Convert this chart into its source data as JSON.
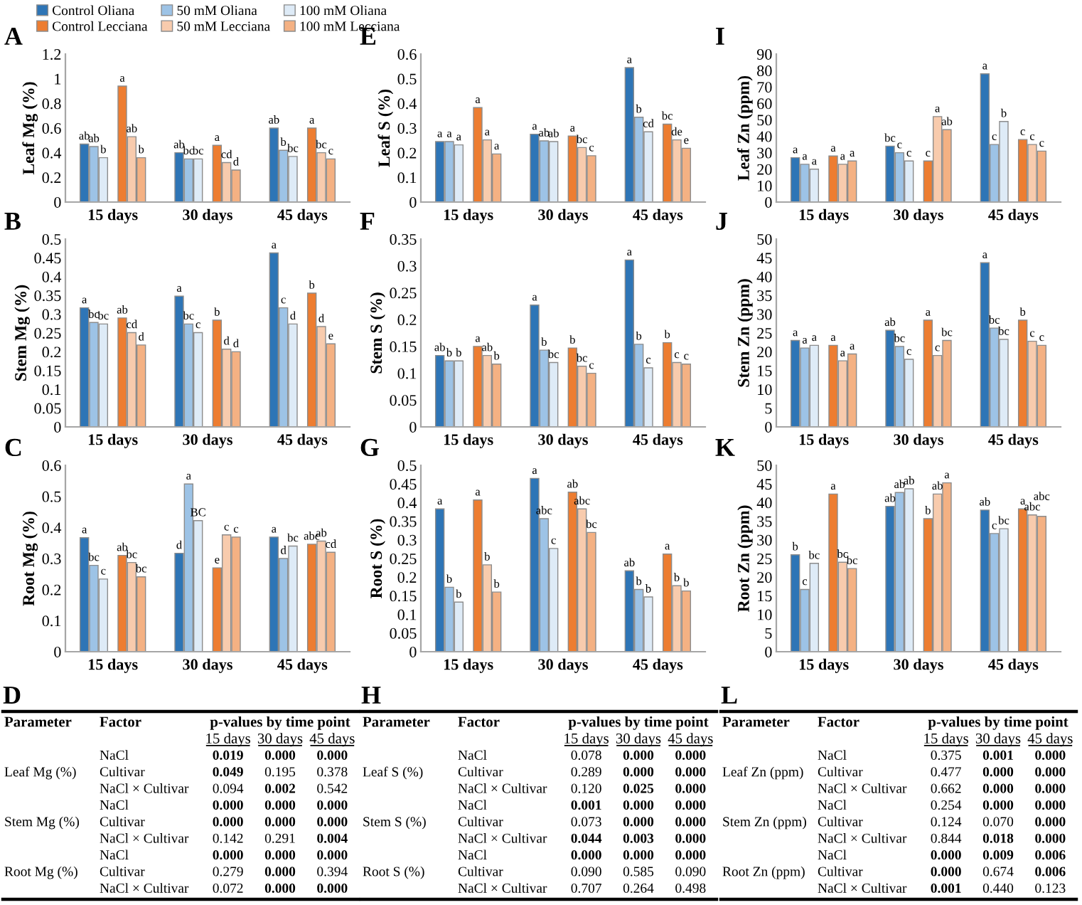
{
  "chart_data": [
    {
      "type": "bar",
      "title": "A",
      "ylabel": "Leaf Mg (%)",
      "categories": [
        "15 days",
        "30 days",
        "45 days"
      ],
      "legend": "top",
      "ylim": [
        0,
        1.2
      ],
      "yticks": [
        0,
        0.2,
        0.4,
        0.6,
        0.8,
        1,
        1.2
      ],
      "series": [
        {
          "name": "Control Oliana",
          "color": "#2e75b6",
          "values": [
            0.47,
            0.4,
            0.6
          ],
          "value_labels": [
            "ab",
            "ab",
            "ab"
          ]
        },
        {
          "name": "50 mM Oliana",
          "color": "#9dc3e6",
          "values": [
            0.45,
            0.35,
            0.42
          ],
          "value_labels": [
            "ab",
            "bc",
            "b"
          ]
        },
        {
          "name": "100 mM Oliana",
          "color": "#deebf7",
          "values": [
            0.36,
            0.35,
            0.37
          ],
          "value_labels": [
            "b",
            "bc",
            "bc"
          ]
        },
        {
          "name": "Control Lecciana",
          "color": "#ed7d31",
          "values": [
            0.94,
            0.46,
            0.6
          ],
          "value_labels": [
            "a",
            "a",
            "a"
          ]
        },
        {
          "name": "50 mM Lecciana",
          "color": "#f8cbad",
          "values": [
            0.53,
            0.32,
            0.4
          ],
          "value_labels": [
            "ab",
            "cd",
            "bc"
          ]
        },
        {
          "name": "100 mM Lecciana",
          "color": "#f4b183",
          "values": [
            0.36,
            0.26,
            0.35
          ],
          "value_labels": [
            "b",
            "d",
            "c"
          ]
        }
      ]
    },
    {
      "type": "bar",
      "title": "E",
      "ylabel": "Leaf S (%)",
      "categories": [
        "15 days",
        "30 days",
        "45 days"
      ],
      "ylim": [
        0,
        0.6
      ],
      "yticks": [
        0,
        0.1,
        0.2,
        0.3,
        0.4,
        0.5,
        0.6
      ],
      "series": [
        {
          "color": "#2e75b6",
          "values": [
            0.245,
            0.275,
            0.545
          ],
          "value_labels": [
            "a",
            "a",
            "a"
          ]
        },
        {
          "color": "#9dc3e6",
          "values": [
            0.245,
            0.248,
            0.344
          ],
          "value_labels": [
            "a",
            "ab",
            "b"
          ]
        },
        {
          "color": "#deebf7",
          "values": [
            0.232,
            0.245,
            0.285
          ],
          "value_labels": [
            "a",
            "ab",
            "cd"
          ]
        },
        {
          "color": "#ed7d31",
          "values": [
            0.383,
            0.268,
            0.316
          ],
          "value_labels": [
            "a",
            "a",
            "bc"
          ]
        },
        {
          "color": "#f8cbad",
          "values": [
            0.252,
            0.221,
            0.252
          ],
          "value_labels": [
            "a",
            "bc",
            "de"
          ]
        },
        {
          "color": "#f4b183",
          "values": [
            0.195,
            0.188,
            0.218
          ],
          "value_labels": [
            "a",
            "c",
            "e"
          ]
        }
      ]
    },
    {
      "type": "bar",
      "title": "I",
      "ylabel": "Leaf Zn (ppm)",
      "categories": [
        "15 days",
        "30 days",
        "45 days"
      ],
      "ylim": [
        0,
        90
      ],
      "yticks": [
        0,
        10,
        20,
        30,
        40,
        50,
        60,
        70,
        80,
        90
      ],
      "series": [
        {
          "color": "#2e75b6",
          "values": [
            27,
            34,
            78
          ],
          "value_labels": [
            "a",
            "bc",
            "a"
          ]
        },
        {
          "color": "#9dc3e6",
          "values": [
            23,
            30,
            35
          ],
          "value_labels": [
            "a",
            "c",
            "c"
          ]
        },
        {
          "color": "#deebf7",
          "values": [
            20,
            25,
            49
          ],
          "value_labels": [
            "a",
            "c",
            "b"
          ]
        },
        {
          "color": "#ed7d31",
          "values": [
            28,
            25,
            38
          ],
          "value_labels": [
            "a",
            "c",
            "c"
          ]
        },
        {
          "color": "#f8cbad",
          "values": [
            23,
            52,
            35
          ],
          "value_labels": [
            "a",
            "a",
            "c"
          ]
        },
        {
          "color": "#f4b183",
          "values": [
            25,
            44,
            31
          ],
          "value_labels": [
            "a",
            "ab",
            "c"
          ]
        }
      ]
    },
    {
      "type": "bar",
      "title": "B",
      "ylabel": "Stem Mg (%)",
      "categories": [
        "15 days",
        "30 days",
        "45 days"
      ],
      "ylim": [
        0,
        0.5
      ],
      "yticks": [
        0,
        0.05,
        0.1,
        0.15,
        0.2,
        0.25,
        0.3,
        0.35,
        0.4,
        0.45,
        0.5
      ],
      "series": [
        {
          "color": "#2e75b6",
          "values": [
            0.317,
            0.348,
            0.463
          ],
          "value_labels": [
            "a",
            "a",
            "a"
          ]
        },
        {
          "color": "#9dc3e6",
          "values": [
            0.278,
            0.274,
            0.317
          ],
          "value_labels": [
            "bc",
            "bc",
            "c"
          ]
        },
        {
          "color": "#deebf7",
          "values": [
            0.274,
            0.251,
            0.274
          ],
          "value_labels": [
            "bc",
            "c",
            "d"
          ]
        },
        {
          "color": "#ed7d31",
          "values": [
            0.29,
            0.284,
            0.356
          ],
          "value_labels": [
            "ab",
            "b",
            "b"
          ]
        },
        {
          "color": "#f8cbad",
          "values": [
            0.251,
            0.207,
            0.267
          ],
          "value_labels": [
            "cd",
            "d",
            "d"
          ]
        },
        {
          "color": "#f4b183",
          "values": [
            0.218,
            0.2,
            0.221
          ],
          "value_labels": [
            "d",
            "d",
            "e"
          ]
        }
      ]
    },
    {
      "type": "bar",
      "title": "F",
      "ylabel": "Stem S (%)",
      "categories": [
        "15 days",
        "30 days",
        "45 days"
      ],
      "ylim": [
        0,
        0.35
      ],
      "yticks": [
        0,
        0.05,
        0.1,
        0.15,
        0.2,
        0.25,
        0.3,
        0.35
      ],
      "series": [
        {
          "color": "#2e75b6",
          "values": [
            0.133,
            0.227,
            0.311
          ],
          "value_labels": [
            "ab",
            "a",
            "a"
          ]
        },
        {
          "color": "#9dc3e6",
          "values": [
            0.123,
            0.143,
            0.154
          ],
          "value_labels": [
            "b",
            "b",
            "b"
          ]
        },
        {
          "color": "#deebf7",
          "values": [
            0.123,
            0.12,
            0.11
          ],
          "value_labels": [
            "b",
            "bc",
            "c"
          ]
        },
        {
          "color": "#ed7d31",
          "values": [
            0.15,
            0.147,
            0.157
          ],
          "value_labels": [
            "a",
            "b",
            "b"
          ]
        },
        {
          "color": "#f8cbad",
          "values": [
            0.133,
            0.113,
            0.12
          ],
          "value_labels": [
            "ab",
            "bc",
            "c"
          ]
        },
        {
          "color": "#f4b183",
          "values": [
            0.117,
            0.1,
            0.117
          ],
          "value_labels": [
            "b",
            "c",
            "c"
          ]
        }
      ]
    },
    {
      "type": "bar",
      "title": "J",
      "ylabel": "Stem Zn (ppm)",
      "categories": [
        "15 days",
        "30 days",
        "45 days"
      ],
      "ylim": [
        0,
        50
      ],
      "yticks": [
        0,
        5,
        10,
        15,
        20,
        25,
        30,
        35,
        40,
        45,
        50
      ],
      "series": [
        {
          "color": "#2e75b6",
          "values": [
            23,
            25.7,
            43.7
          ],
          "value_labels": [
            "a",
            "ab",
            "a"
          ]
        },
        {
          "color": "#9dc3e6",
          "values": [
            21,
            21.4,
            26.3
          ],
          "value_labels": [
            "a",
            "bc",
            "bc"
          ]
        },
        {
          "color": "#deebf7",
          "values": [
            21.7,
            18,
            23.3
          ],
          "value_labels": [
            "a",
            "c",
            "bc"
          ]
        },
        {
          "color": "#ed7d31",
          "values": [
            21.7,
            28.4,
            28.4
          ],
          "value_labels": [
            "a",
            "a",
            "b"
          ]
        },
        {
          "color": "#f8cbad",
          "values": [
            17.6,
            19,
            22.8
          ],
          "value_labels": [
            "a",
            "c",
            "c"
          ]
        },
        {
          "color": "#f4b183",
          "values": [
            19.4,
            23,
            21.7
          ],
          "value_labels": [
            "a",
            "bc",
            "c"
          ]
        }
      ]
    },
    {
      "type": "bar",
      "title": "C",
      "ylabel": "Root Mg (%)",
      "categories": [
        "15 days",
        "30 days",
        "45 days"
      ],
      "ylim": [
        0,
        0.6
      ],
      "yticks": [
        0,
        0.1,
        0.2,
        0.3,
        0.4,
        0.5,
        0.6
      ],
      "series": [
        {
          "color": "#2e75b6",
          "values": [
            0.367,
            0.317,
            0.369
          ],
          "value_labels": [
            "a",
            "d",
            "a"
          ]
        },
        {
          "color": "#9dc3e6",
          "values": [
            0.278,
            0.54,
            0.3
          ],
          "value_labels": [
            "bc",
            "a",
            "d"
          ]
        },
        {
          "color": "#deebf7",
          "values": [
            0.234,
            0.422,
            0.34
          ],
          "value_labels": [
            "c",
            "BC",
            "bc"
          ]
        },
        {
          "color": "#ed7d31",
          "values": [
            0.31,
            0.27,
            0.346
          ],
          "value_labels": [
            "ab",
            "e",
            "abc"
          ]
        },
        {
          "color": "#f8cbad",
          "values": [
            0.287,
            0.376,
            0.356
          ],
          "value_labels": [
            "bc",
            "c",
            "ab"
          ]
        },
        {
          "color": "#f4b183",
          "values": [
            0.241,
            0.369,
            0.32
          ],
          "value_labels": [
            "bc",
            "c",
            "cd"
          ]
        }
      ]
    },
    {
      "type": "bar",
      "title": "G",
      "ylabel": "Root S (%)",
      "categories": [
        "15 days",
        "30 days",
        "45 days"
      ],
      "ylim": [
        0,
        0.5
      ],
      "yticks": [
        0,
        0.05,
        0.1,
        0.15,
        0.2,
        0.25,
        0.3,
        0.35,
        0.4,
        0.45,
        0.5
      ],
      "series": [
        {
          "color": "#2e75b6",
          "values": [
            0.383,
            0.465,
            0.217
          ],
          "value_labels": [
            "a",
            "a",
            "ab"
          ]
        },
        {
          "color": "#9dc3e6",
          "values": [
            0.173,
            0.357,
            0.167
          ],
          "value_labels": [
            "b",
            "abc",
            "b"
          ]
        },
        {
          "color": "#deebf7",
          "values": [
            0.133,
            0.277,
            0.147
          ],
          "value_labels": [
            "b",
            "c",
            "b"
          ]
        },
        {
          "color": "#ed7d31",
          "values": [
            0.407,
            0.428,
            0.262
          ],
          "value_labels": [
            "a",
            "ab",
            "a"
          ]
        },
        {
          "color": "#f8cbad",
          "values": [
            0.233,
            0.383,
            0.177
          ],
          "value_labels": [
            "b",
            "abc",
            "b"
          ]
        },
        {
          "color": "#f4b183",
          "values": [
            0.16,
            0.32,
            0.163
          ],
          "value_labels": [
            "b",
            "bc",
            "b"
          ]
        }
      ]
    },
    {
      "type": "bar",
      "title": "K",
      "ylabel": "Root Zn (ppm)",
      "categories": [
        "15 days",
        "30 days",
        "45 days"
      ],
      "ylim": [
        0,
        50
      ],
      "yticks": [
        0,
        5,
        10,
        15,
        20,
        25,
        30,
        35,
        40,
        45,
        50
      ],
      "series": [
        {
          "color": "#2e75b6",
          "values": [
            26,
            39,
            38
          ],
          "value_labels": [
            "b",
            "ab",
            "ab"
          ]
        },
        {
          "color": "#9dc3e6",
          "values": [
            16.7,
            42.7,
            31.7
          ],
          "value_labels": [
            "c",
            "ab",
            "c"
          ]
        },
        {
          "color": "#deebf7",
          "values": [
            23.7,
            43.7,
            33
          ],
          "value_labels": [
            "bc",
            "ab",
            "bc"
          ]
        },
        {
          "color": "#ed7d31",
          "values": [
            42.3,
            35.7,
            38.3
          ],
          "value_labels": [
            "a",
            "b",
            "a"
          ]
        },
        {
          "color": "#f8cbad",
          "values": [
            24,
            42.3,
            36.7
          ],
          "value_labels": [
            "bc",
            "ab",
            "abc"
          ]
        },
        {
          "color": "#f4b183",
          "values": [
            22.3,
            45.3,
            36.3
          ],
          "value_labels": [
            "bc",
            "a",
            "abc"
          ]
        }
      ]
    },
    {
      "type": "heatmap",
      "title": "D",
      "subtitle": "p-values by time point",
      "annotations": [
        "Parameter",
        "Factor"
      ],
      "categories": [
        "15 days",
        "30 days",
        "45 days"
      ],
      "y_categories": [
        "NaCl",
        "Cultivar",
        "NaCl × Cultivar",
        "NaCl",
        "Cultivar",
        "NaCl × Cultivar",
        "NaCl",
        "Cultivar",
        "NaCl × Cultivar"
      ],
      "y2_categories": [
        null,
        "Leaf Mg (%)",
        null,
        null,
        "Stem Mg (%)",
        null,
        null,
        "Root Mg (%)",
        null
      ],
      "cells": [
        [
          0.019,
          0.0,
          0.0
        ],
        [
          0.049,
          0.195,
          0.378
        ],
        [
          0.094,
          0.002,
          0.542
        ],
        [
          0.0,
          0.0,
          0.0
        ],
        [
          0.0,
          0.0,
          0.0
        ],
        [
          0.142,
          0.291,
          0.004
        ],
        [
          0.0,
          0.0,
          0.0
        ],
        [
          0.279,
          0.0,
          0.394
        ],
        [
          0.072,
          0.0,
          0.0
        ]
      ],
      "cell_labels": [
        [
          "0.019",
          "0.000",
          "0.000"
        ],
        [
          "0.049",
          "0.195",
          "0.378"
        ],
        [
          "0.094",
          "0.002",
          "0.542"
        ],
        [
          "0.000",
          "0.000",
          "0.000"
        ],
        [
          "0.000",
          "0.000",
          "0.000"
        ],
        [
          "0.142",
          "0.291",
          "0.004"
        ],
        [
          "0.000",
          "0.000",
          "0.000"
        ],
        [
          "0.279",
          "0.000",
          "0.394"
        ],
        [
          "0.072",
          "0.000",
          "0.000"
        ]
      ]
    },
    {
      "type": "heatmap",
      "title": "H",
      "subtitle": "p-values by time point",
      "annotations": [
        "Parameter",
        "Factor"
      ],
      "categories": [
        "15 days",
        "30 days",
        "45 days"
      ],
      "y_categories": [
        "NaCl",
        "Cultivar",
        "NaCl × Cultivar",
        "NaCl",
        "Cultivar",
        "NaCl × Cultivar",
        "NaCl",
        "Cultivar",
        "NaCl × Cultivar"
      ],
      "y2_categories": [
        null,
        "Leaf S (%)",
        null,
        null,
        "Stem S (%)",
        null,
        null,
        "Root S (%)",
        null
      ],
      "cells": [
        [
          0.078,
          0.0,
          0.0
        ],
        [
          0.289,
          0.0,
          0.0
        ],
        [
          0.12,
          0.025,
          0.0
        ],
        [
          0.001,
          0.0,
          0.0
        ],
        [
          0.073,
          0.0,
          0.0
        ],
        [
          0.044,
          0.003,
          0.0
        ],
        [
          0.0,
          0.0,
          0.0
        ],
        [
          0.09,
          0.585,
          0.09
        ],
        [
          0.707,
          0.264,
          0.498
        ]
      ],
      "cell_labels": [
        [
          "0.078",
          "0.000",
          "0.000"
        ],
        [
          "0.289",
          "0.000",
          "0.000"
        ],
        [
          "0.120",
          "0.025",
          "0.000"
        ],
        [
          "0.001",
          "0.000",
          "0.000"
        ],
        [
          "0.073",
          "0.000",
          "0.000"
        ],
        [
          "0.044",
          "0.003",
          "0.000"
        ],
        [
          "0.000",
          "0.000",
          "0.000"
        ],
        [
          "0.090",
          "0.585",
          "0.090"
        ],
        [
          "0.707",
          "0.264",
          "0.498"
        ]
      ]
    },
    {
      "type": "heatmap",
      "title": "L",
      "subtitle": "p-values by time point",
      "annotations": [
        "Parameter",
        "Factor"
      ],
      "categories": [
        "15 days",
        "30 days",
        "45 days"
      ],
      "y_categories": [
        "NaCl",
        "Cultivar",
        "NaCl × Cultivar",
        "NaCl",
        "Cultivar",
        "NaCl × Cultivar",
        "NaCl",
        "Cultivar",
        "NaCl × Cultivar"
      ],
      "y2_categories": [
        null,
        "Leaf Zn (ppm)",
        null,
        null,
        "Stem Zn (ppm)",
        null,
        null,
        "Root Zn (ppm)",
        null
      ],
      "cells": [
        [
          0.375,
          0.001,
          0.0
        ],
        [
          0.477,
          0.0,
          0.0
        ],
        [
          0.662,
          0.0,
          0.0
        ],
        [
          0.254,
          0.0,
          0.0
        ],
        [
          0.124,
          0.07,
          0.0
        ],
        [
          0.844,
          0.018,
          0.0
        ],
        [
          0.0,
          0.009,
          0.006
        ],
        [
          0.0,
          0.674,
          0.006
        ],
        [
          0.001,
          0.44,
          0.123
        ]
      ],
      "cell_labels": [
        [
          "0.375",
          "0.001",
          "0.000"
        ],
        [
          "0.477",
          "0.000",
          "0.000"
        ],
        [
          "0.662",
          "0.000",
          "0.000"
        ],
        [
          "0.254",
          "0.000",
          "0.000"
        ],
        [
          "0.124",
          "0.070",
          "0.000"
        ],
        [
          "0.844",
          "0.018",
          "0.000"
        ],
        [
          "0.000",
          "0.009",
          "0.006"
        ],
        [
          "0.000",
          "0.674",
          "0.006"
        ],
        [
          "0.001",
          "0.440",
          "0.123"
        ]
      ]
    }
  ]
}
